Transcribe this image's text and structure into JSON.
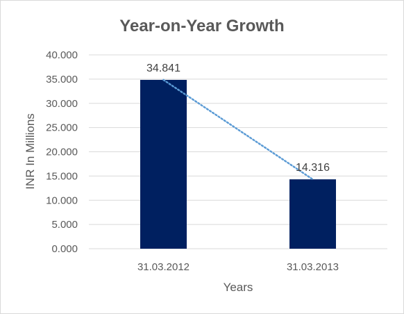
{
  "chart_data": {
    "type": "bar",
    "title": "Year-on-Year Growth",
    "xlabel": "Years",
    "ylabel": "INR In Millions",
    "categories": [
      "31.03.2012",
      "31.03.2013"
    ],
    "series": [
      {
        "values": [
          34.841,
          14.316
        ]
      }
    ],
    "data_labels": [
      "34.841",
      "14.316"
    ],
    "ylim": [
      0,
      40
    ],
    "yticks": [
      {
        "value": 0,
        "label": "0.000"
      },
      {
        "value": 5,
        "label": "5.000"
      },
      {
        "value": 10,
        "label": "10.000"
      },
      {
        "value": 15,
        "label": "15.000"
      },
      {
        "value": 20,
        "label": "20.000"
      },
      {
        "value": 25,
        "label": "25.000"
      },
      {
        "value": 30,
        "label": "30.000"
      },
      {
        "value": 35,
        "label": "35.000"
      },
      {
        "value": 40,
        "label": "40.000"
      }
    ],
    "grid": true,
    "legend": "none",
    "trendline": "linear",
    "colors": {
      "bar": "#002060",
      "trendline": "#5b9bd5",
      "grid": "#d9d9d9",
      "text": "#595959"
    }
  }
}
